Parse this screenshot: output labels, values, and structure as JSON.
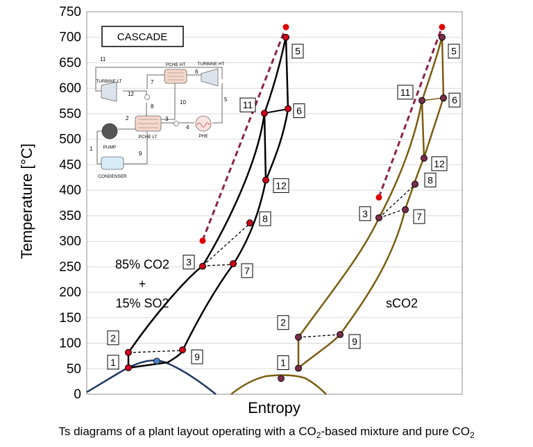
{
  "chart_data": {
    "type": "line",
    "title": "",
    "xlabel": "Entropy",
    "ylabel": "Temperature [°C]",
    "ylim": [
      0,
      750
    ],
    "yticks": [
      0,
      50,
      100,
      150,
      200,
      250,
      300,
      350,
      400,
      450,
      500,
      550,
      600,
      650,
      700,
      750
    ],
    "grid": true,
    "x_units": "relative entropy (no tick labels shown)",
    "annotations": {
      "mixture_line1": "85% CO2",
      "mixture_plus": "+",
      "mixture_line2": "15% SO2",
      "pure": "sCO2",
      "layout_box": "CASCADE"
    },
    "series": [
      {
        "name": "85% CO2 + 15% SO2",
        "color": "#000000",
        "points": [
          {
            "label": "1",
            "s": 0.97,
            "T": 52
          },
          {
            "label": "2",
            "s": 0.97,
            "T": 82
          },
          {
            "label": "3",
            "s": 1.25,
            "T": 251
          },
          {
            "label": "7",
            "s": 1.37,
            "T": 256
          },
          {
            "label": "8",
            "s": 1.45,
            "T": 336
          },
          {
            "label": "12",
            "s": 1.53,
            "T": 420
          },
          {
            "label": "11",
            "s": 1.52,
            "T": 551
          },
          {
            "label": "5",
            "s": 1.61,
            "T": 700
          },
          {
            "label": "6",
            "s": 1.62,
            "T": 560
          },
          {
            "label": "9",
            "s": 1.21,
            "T": 87
          }
        ],
        "ideal_expansion_end": {
          "s": 1.26,
          "T": 301
        },
        "ideal_expansion_start": {
          "s": 1.61,
          "T": 720
        },
        "saturation_dome_peak": {
          "s": 1.05,
          "T": 65
        }
      },
      {
        "name": "sCO2",
        "color": "#7A5C0E",
        "points": [
          {
            "label": "1",
            "s": 2.03,
            "T": 51
          },
          {
            "label": "2",
            "s": 2.03,
            "T": 112
          },
          {
            "label": "3",
            "s": 2.39,
            "T": 346
          },
          {
            "label": "7",
            "s": 2.51,
            "T": 362
          },
          {
            "label": "8",
            "s": 2.56,
            "T": 412
          },
          {
            "label": "12",
            "s": 2.6,
            "T": 463
          },
          {
            "label": "11",
            "s": 2.59,
            "T": 576
          },
          {
            "label": "5",
            "s": 2.67,
            "T": 700
          },
          {
            "label": "6",
            "s": 2.68,
            "T": 581
          },
          {
            "label": "9",
            "s": 2.25,
            "T": 117
          }
        ],
        "ideal_expansion_end": {
          "s": 2.39,
          "T": 386
        },
        "ideal_expansion_start": {
          "s": 2.67,
          "T": 720
        },
        "saturation_dome_peak": {
          "s": 2.02,
          "T": 31
        }
      }
    ],
    "caption_pre": "Ts diagrams of a plant layout operating with a CO",
    "caption_sub1": "2",
    "caption_mid": "-based mixture and pure CO",
    "caption_sub2": "2",
    "schematic": {
      "labels": {
        "turbine_lt": "TURBINE LT",
        "turbine_ht": "TURBINE HT",
        "pche_ht": "PCHE HT",
        "pche_lt": "PCHE LT",
        "pump": "PUMP",
        "phe": "PHE",
        "condenser": "CONDENSER"
      },
      "stream_numbers": [
        "1",
        "2",
        "3",
        "4",
        "5",
        "6",
        "7",
        "8",
        "9",
        "10",
        "11",
        "12"
      ]
    }
  }
}
